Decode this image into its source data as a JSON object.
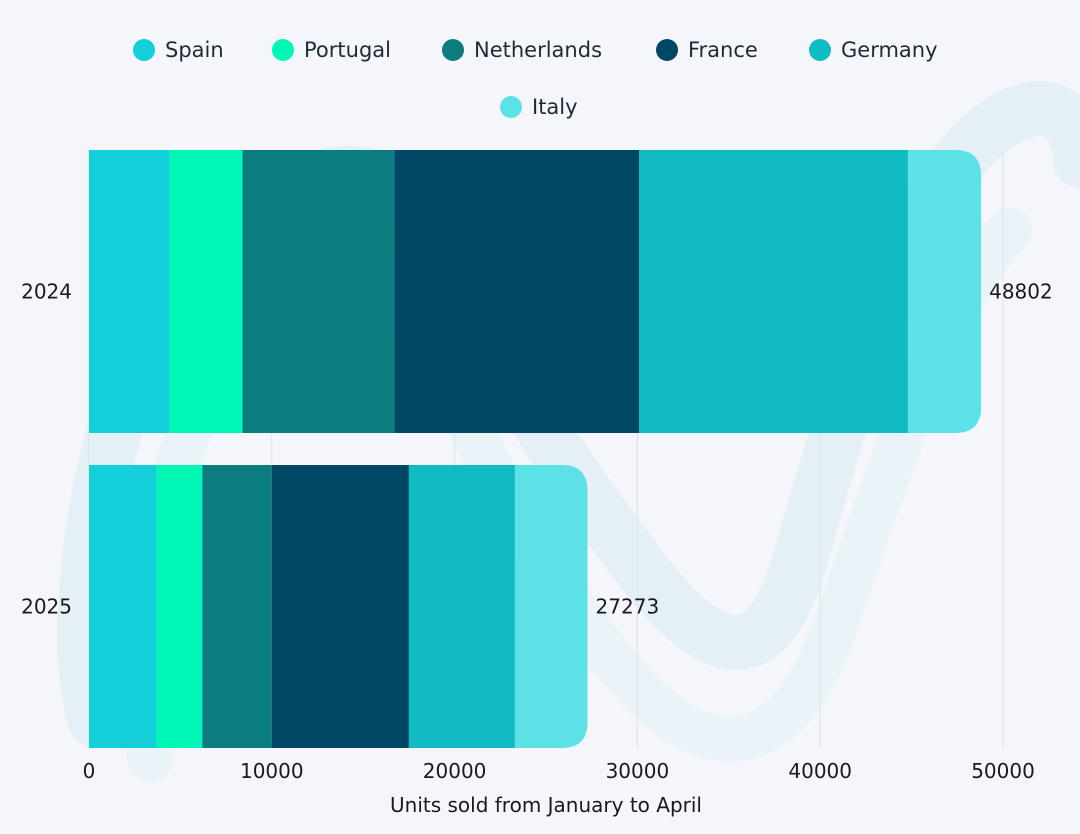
{
  "chart_data": {
    "type": "bar",
    "orientation": "horizontal",
    "stacked": true,
    "categories": [
      "2024",
      "2025"
    ],
    "series": [
      {
        "name": "Spain",
        "color": "#12cfd9",
        "values": [
          4400,
          3700
        ]
      },
      {
        "name": "Portugal",
        "color": "#00f7b6",
        "values": [
          4000,
          2500
        ]
      },
      {
        "name": "Netherlands",
        "color": "#0b7d80",
        "values": [
          8300,
          3800
        ]
      },
      {
        "name": "France",
        "color": "#004766",
        "values": [
          13400,
          7500
        ]
      },
      {
        "name": "Germany",
        "color": "#10bbc4",
        "values": [
          14700,
          5800
        ]
      },
      {
        "name": "Italy",
        "color": "#5be1e6",
        "values": [
          4002,
          3973
        ]
      }
    ],
    "totals": [
      "48802",
      "27273"
    ],
    "xlabel": "Units sold from January to April",
    "ylabel": "",
    "xlim": [
      0,
      50000
    ],
    "xticks": [
      "0",
      "10000",
      "20000",
      "30000",
      "40000",
      "50000"
    ],
    "grid": "vertical",
    "legend_position": "top"
  }
}
